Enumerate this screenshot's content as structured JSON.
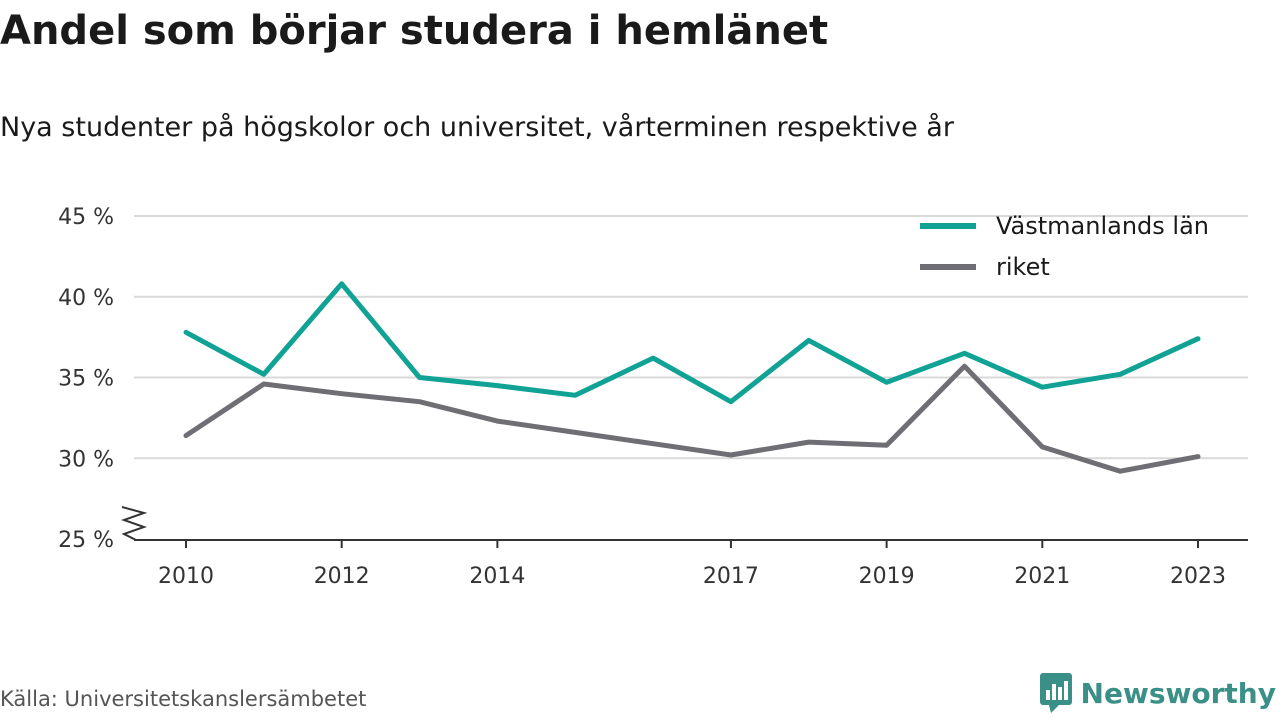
{
  "header": {
    "title": "Andel som börjar studera i hemlänet",
    "subtitle": "Nya studenter på högskolor och universitet, vårterminen respektive år"
  },
  "footer": {
    "source": "Källa: Universitetskanslersämbetet",
    "brand": "Newsworthy",
    "brand_icon": "newsworthy-logo-icon"
  },
  "colors": {
    "vastmanland": "#10a295",
    "riket": "#6e6e74",
    "grid": "#d9d9d9",
    "axis": "#333333",
    "brand": "#3a8f86"
  },
  "chart_data": {
    "type": "line",
    "title": "Andel som börjar studera i hemlänet",
    "subtitle": "Nya studenter på högskolor och universitet, vårterminen respektive år",
    "x": [
      2010,
      2011,
      2012,
      2013,
      2014,
      2015,
      2016,
      2017,
      2018,
      2019,
      2020,
      2021,
      2022,
      2023
    ],
    "x_ticks": [
      2010,
      2012,
      2014,
      2017,
      2019,
      2021,
      2023
    ],
    "x_tick_labels": [
      "2010",
      "2012",
      "2014",
      "2017",
      "2019",
      "2021",
      "2023"
    ],
    "y_ticks": [
      25,
      30,
      35,
      40,
      45
    ],
    "y_tick_labels": [
      "25 %",
      "30 %",
      "35 %",
      "40 %",
      "45 %"
    ],
    "ylim": [
      25,
      45
    ],
    "y_axis_break": true,
    "grid": true,
    "legend_position": "top-right",
    "series": [
      {
        "name": "Västmanlands län",
        "color": "#10a295",
        "values": [
          37.8,
          35.2,
          40.8,
          35.0,
          34.5,
          33.9,
          36.2,
          33.5,
          37.3,
          34.7,
          36.5,
          34.4,
          35.2,
          37.4
        ]
      },
      {
        "name": "riket",
        "color": "#6e6e74",
        "values": [
          31.4,
          34.6,
          34.0,
          33.5,
          32.3,
          31.6,
          30.9,
          30.2,
          31.0,
          30.8,
          35.7,
          30.7,
          29.2,
          30.1
        ]
      }
    ]
  }
}
